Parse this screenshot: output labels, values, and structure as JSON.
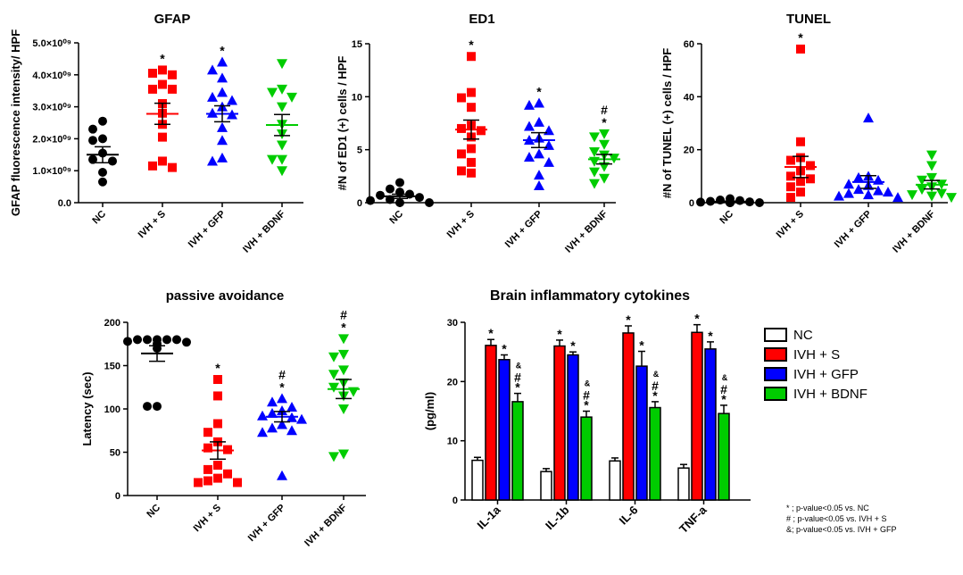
{
  "chart_data": [
    {
      "id": "gfap",
      "type": "scatter",
      "title": "GFAP",
      "ylabel": "GFAP fluorescence intensity/ HPF",
      "ylim": [
        0,
        5000000000.0
      ],
      "yticks": [
        0,
        1000000000.0,
        2000000000.0,
        3000000000.0,
        4000000000.0,
        5000000000.0
      ],
      "ytick_labels": [
        "0.0",
        "1.0×10⁰⁹",
        "2.0×10⁰⁹",
        "3.0×10⁰⁹",
        "4.0×10⁰⁹",
        "5.0×10⁰⁹"
      ],
      "categories": [
        "NC",
        "IVH + S",
        "IVH + GFP",
        "IVH + BDNF"
      ],
      "groups": [
        {
          "category": "NC",
          "color": "#000000",
          "marker": "circle",
          "mean": 1500000000.0,
          "sem": 250000000.0,
          "points": [
            2550000000.0,
            2300000000.0,
            2000000000.0,
            1950000000.0,
            1550000000.0,
            1350000000.0,
            1300000000.0,
            950000000.0,
            650000000.0
          ],
          "sig": []
        },
        {
          "category": "IVH + S",
          "color": "#ff0000",
          "marker": "square",
          "mean": 2780000000.0,
          "sem": 330000000.0,
          "points": [
            4150000000.0,
            4050000000.0,
            4000000000.0,
            3700000000.0,
            3550000000.0,
            3550000000.0,
            3100000000.0,
            2800000000.0,
            2450000000.0,
            2050000000.0,
            1300000000.0,
            1150000000.0,
            1100000000.0
          ],
          "sig": [
            "*"
          ]
        },
        {
          "category": "IVH + GFP",
          "color": "#0000ff",
          "marker": "triangle",
          "mean": 2780000000.0,
          "sem": 250000000.0,
          "points": [
            4400000000.0,
            4150000000.0,
            3900000000.0,
            3450000000.0,
            3300000000.0,
            3200000000.0,
            3000000000.0,
            2800000000.0,
            2750000000.0,
            2350000000.0,
            1950000000.0,
            1400000000.0,
            1300000000.0
          ],
          "sig": [
            "*"
          ]
        },
        {
          "category": "IVH + BDNF",
          "color": "#00cc00",
          "marker": "invtriangle",
          "mean": 2430000000.0,
          "sem": 330000000.0,
          "points": [
            4350000000.0,
            3550000000.0,
            3450000000.0,
            3300000000.0,
            3000000000.0,
            2450000000.0,
            2150000000.0,
            1800000000.0,
            1350000000.0,
            1350000000.0,
            1000000000.0
          ],
          "sig": []
        }
      ]
    },
    {
      "id": "ed1",
      "type": "scatter",
      "title": "ED1",
      "ylabel": "#N of ED1 (+) cells / HPF",
      "ylim": [
        0,
        15
      ],
      "yticks": [
        0,
        5,
        10,
        15
      ],
      "ytick_labels": [
        "0",
        "5",
        "10",
        "15"
      ],
      "categories": [
        "NC",
        "IVH + S",
        "IVH + GFP",
        "IVH + BDNF"
      ],
      "groups": [
        {
          "category": "NC",
          "color": "#000000",
          "marker": "circle",
          "mean": 0.6,
          "sem": 0.2,
          "points": [
            1.9,
            1.3,
            1.0,
            0.8,
            0.7,
            0.5,
            0.3,
            0.2,
            0.0,
            0.0
          ],
          "sig": []
        },
        {
          "category": "IVH + S",
          "color": "#ff0000",
          "marker": "square",
          "mean": 6.9,
          "sem": 0.9,
          "points": [
            13.8,
            10.4,
            9.9,
            9.0,
            7.3,
            7.0,
            6.8,
            6.2,
            5.1,
            4.6,
            3.8,
            3.0,
            2.8
          ],
          "sig": [
            "*"
          ]
        },
        {
          "category": "IVH + GFP",
          "color": "#0000ff",
          "marker": "triangle",
          "mean": 5.9,
          "sem": 0.7,
          "points": [
            9.4,
            9.2,
            7.6,
            7.2,
            6.8,
            6.1,
            5.9,
            5.4,
            4.6,
            4.3,
            3.8,
            2.6,
            1.6
          ],
          "sig": [
            "*"
          ]
        },
        {
          "category": "IVH + BDNF",
          "color": "#00cc00",
          "marker": "invtriangle",
          "mean": 4.1,
          "sem": 0.45,
          "points": [
            6.5,
            6.2,
            5.5,
            4.8,
            4.5,
            4.2,
            3.9,
            3.4,
            2.9,
            2.3,
            1.8
          ],
          "sig": [
            "#",
            "*"
          ]
        }
      ]
    },
    {
      "id": "tunel",
      "type": "scatter",
      "title": "TUNEL",
      "ylabel": "#N of TUNEL (+) cells / HPF",
      "ylim": [
        0,
        60
      ],
      "yticks": [
        0,
        20,
        40,
        60
      ],
      "ytick_labels": [
        "0",
        "20",
        "40",
        "60"
      ],
      "categories": [
        "NC",
        "IVH + S",
        "IVH + GFP",
        "IVH + BDNF"
      ],
      "groups": [
        {
          "category": "NC",
          "color": "#000000",
          "marker": "circle",
          "mean": 0.4,
          "sem": 0.2,
          "points": [
            1.5,
            1.0,
            0.8,
            0.5,
            0.3,
            0.2,
            0.0,
            0.0,
            0.0,
            0.0
          ],
          "sig": []
        },
        {
          "category": "IVH + S",
          "color": "#ff0000",
          "marker": "square",
          "mean": 13.5,
          "sem": 4.0,
          "points": [
            58.0,
            23.0,
            17.0,
            16.0,
            14.0,
            12.0,
            10.0,
            9.0,
            8.0,
            6.0,
            4.0,
            2.0
          ],
          "sig": [
            "*"
          ]
        },
        {
          "category": "IVH + GFP",
          "color": "#0000ff",
          "marker": "triangle",
          "mean": 7.8,
          "sem": 2.4,
          "points": [
            32.0,
            10.0,
            9.5,
            8.5,
            7.0,
            6.5,
            5.0,
            4.5,
            4.0,
            3.5,
            3.0,
            2.5,
            2.0
          ],
          "sig": []
        },
        {
          "category": "IVH + BDNF",
          "color": "#00cc00",
          "marker": "invtriangle",
          "mean": 6.8,
          "sem": 1.6,
          "points": [
            18.0,
            14.0,
            9.5,
            8.5,
            7.0,
            6.0,
            5.0,
            3.5,
            3.0,
            2.5,
            2.0
          ],
          "sig": []
        }
      ]
    },
    {
      "id": "passive",
      "type": "scatter",
      "title": "passive avoidance",
      "ylabel": "Latency (sec)",
      "ylim": [
        0,
        200
      ],
      "yticks": [
        0,
        50,
        100,
        150,
        200
      ],
      "ytick_labels": [
        "0",
        "50",
        "100",
        "150",
        "200"
      ],
      "categories": [
        "NC",
        "IVH + S",
        "IVH + GFP",
        "IVH + BDNF"
      ],
      "groups": [
        {
          "category": "NC",
          "color": "#000000",
          "marker": "circle",
          "mean": 164,
          "sem": 9,
          "points": [
            180,
            180,
            180,
            180,
            180,
            178,
            177,
            175,
            170,
            103,
            103
          ],
          "sig": []
        },
        {
          "category": "IVH + S",
          "color": "#ff0000",
          "marker": "square",
          "mean": 52,
          "sem": 10,
          "points": [
            134,
            115,
            83,
            73,
            62,
            55,
            53,
            35,
            30,
            25,
            20,
            17,
            15,
            15
          ],
          "sig": [
            "*"
          ]
        },
        {
          "category": "IVH + GFP",
          "color": "#0000ff",
          "marker": "triangle",
          "mean": 91,
          "sem": 6,
          "points": [
            112,
            108,
            102,
            98,
            95,
            92,
            90,
            88,
            82,
            78,
            75,
            73,
            23
          ],
          "sig": [
            "#",
            "*"
          ]
        },
        {
          "category": "IVH + BDNF",
          "color": "#00cc00",
          "marker": "invtriangle",
          "mean": 123,
          "sem": 11,
          "points": [
            181,
            163,
            160,
            145,
            140,
            130,
            125,
            120,
            115,
            100,
            48,
            45
          ],
          "sig": [
            "#",
            "*"
          ]
        }
      ]
    },
    {
      "id": "cytokines",
      "type": "bar",
      "title": "Brain inflammatory cytokines",
      "ylabel": "(pg/ml)",
      "ylim": [
        0,
        30
      ],
      "yticks": [
        0,
        10,
        20,
        30
      ],
      "ytick_labels": [
        "0",
        "10",
        "20",
        "30"
      ],
      "categories": [
        "IL-1a",
        "IL-1b",
        "IL-6",
        "TNF-a"
      ],
      "series": [
        {
          "name": "NC",
          "color": "#ffffff",
          "values": [
            6.7,
            4.8,
            6.6,
            5.4
          ],
          "errors": [
            0.5,
            0.5,
            0.5,
            0.6
          ],
          "sig": [
            [],
            [],
            [],
            []
          ]
        },
        {
          "name": "IVH + S",
          "color": "#ff0000",
          "values": [
            26.1,
            26.0,
            28.2,
            28.3
          ],
          "errors": [
            1.0,
            1.0,
            1.2,
            1.3
          ],
          "sig": [
            [
              "*"
            ],
            [
              "*"
            ],
            [
              "*"
            ],
            [
              "*"
            ]
          ]
        },
        {
          "name": "IVH + GFP",
          "color": "#0000ff",
          "values": [
            23.7,
            24.5,
            22.6,
            25.5
          ],
          "errors": [
            0.8,
            0.5,
            2.5,
            1.2
          ],
          "sig": [
            [
              "*"
            ],
            [
              "*"
            ],
            [
              "*"
            ],
            [
              "*"
            ]
          ]
        },
        {
          "name": "IVH + BDNF",
          "color": "#00cc00",
          "values": [
            16.6,
            14.0,
            15.6,
            14.6
          ],
          "errors": [
            1.4,
            1.0,
            1.0,
            1.4
          ],
          "sig": [
            [
              "&",
              "#",
              "*"
            ],
            [
              "&",
              "#",
              "*"
            ],
            [
              "&",
              "#",
              "*"
            ],
            [
              "&",
              "#",
              "*"
            ]
          ]
        }
      ],
      "legend": [
        "NC",
        "IVH + S",
        "IVH + GFP",
        "IVH + BDNF"
      ],
      "footnotes": [
        "* ; p-value<0.05  vs.  NC",
        "# ; p-value<0.05  vs.  IVH + S",
        "&; p-value<0.05  vs.  IVH + GFP"
      ]
    }
  ]
}
